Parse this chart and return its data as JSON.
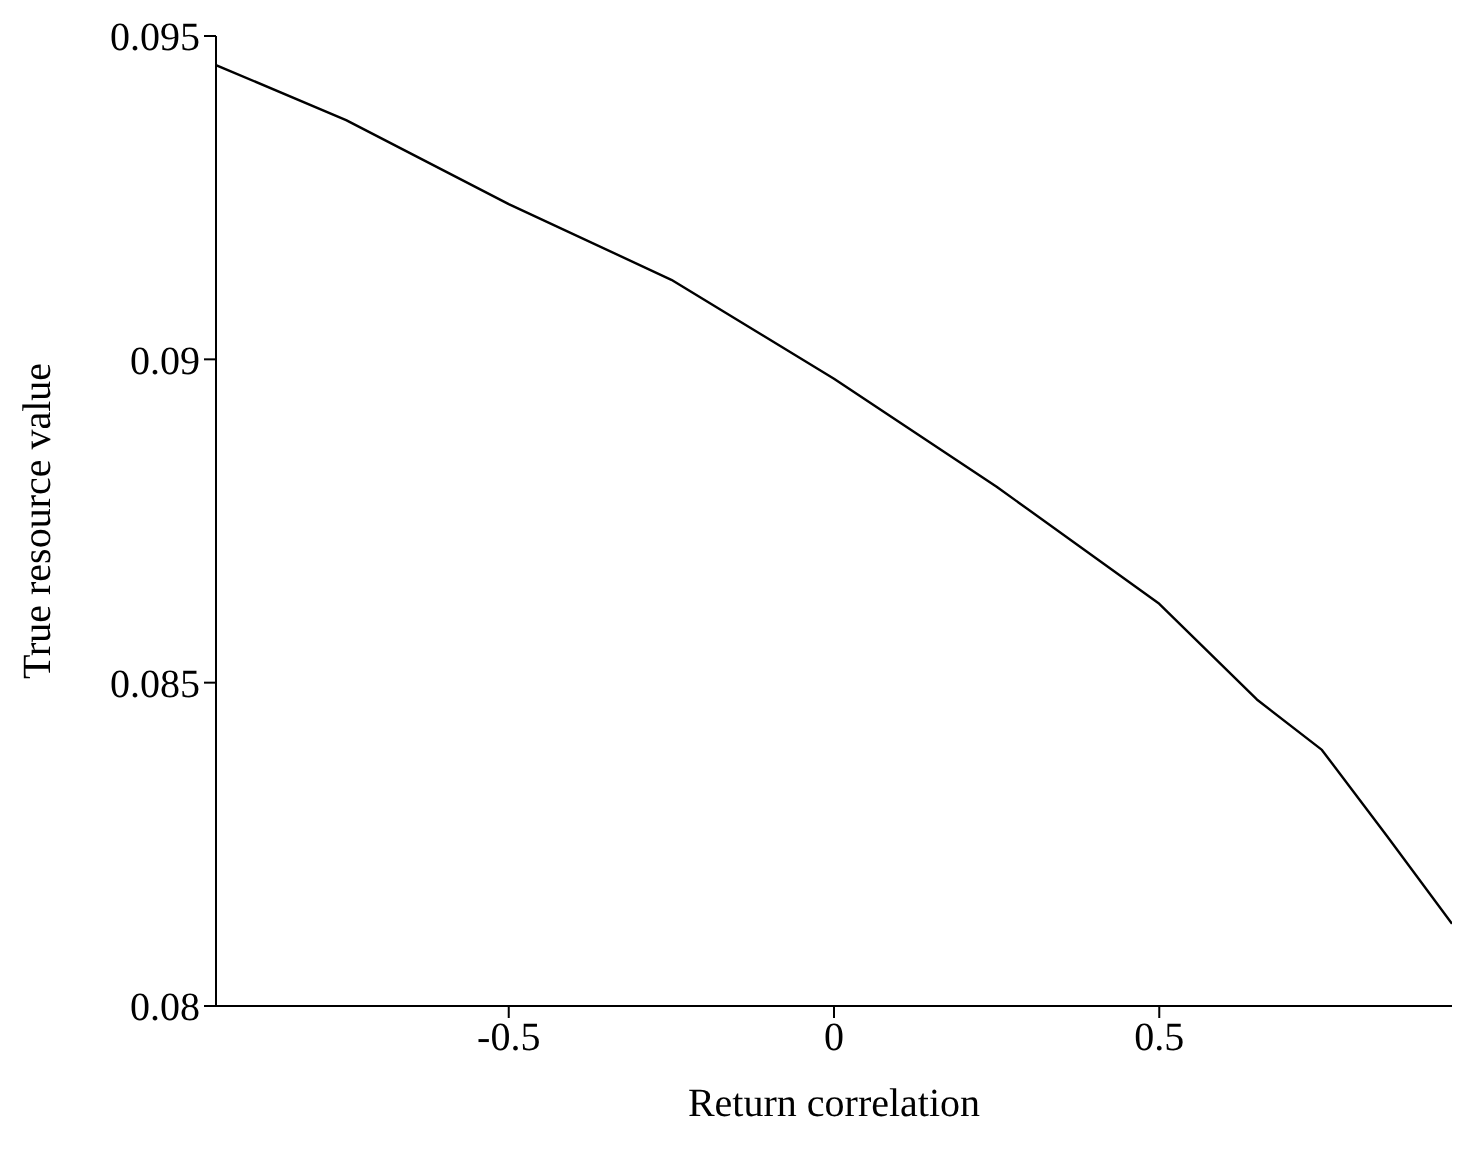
{
  "chart_data": {
    "type": "line",
    "xlabel": "Return correlation",
    "ylabel": "True resource value",
    "x": [
      -0.95,
      -0.75,
      -0.5,
      -0.25,
      0,
      0.25,
      0.5,
      0.65,
      0.75,
      0.85,
      0.95
    ],
    "series": [
      {
        "color": "#000000",
        "values": [
          0.09455,
          0.0937,
          0.0924,
          0.09123,
          0.0897,
          0.08803,
          0.08622,
          0.08474,
          0.08396,
          0.08263,
          0.08127
        ]
      }
    ],
    "xlim": [
      -0.95,
      0.95
    ],
    "xticks": [
      -0.5,
      0,
      0.5
    ],
    "ylim": [
      0.08,
      0.095
    ],
    "yticks": [
      0.08,
      0.085,
      0.09,
      0.095
    ],
    "grid": false,
    "legend": false,
    "marker": "none",
    "line_style": "solid"
  }
}
